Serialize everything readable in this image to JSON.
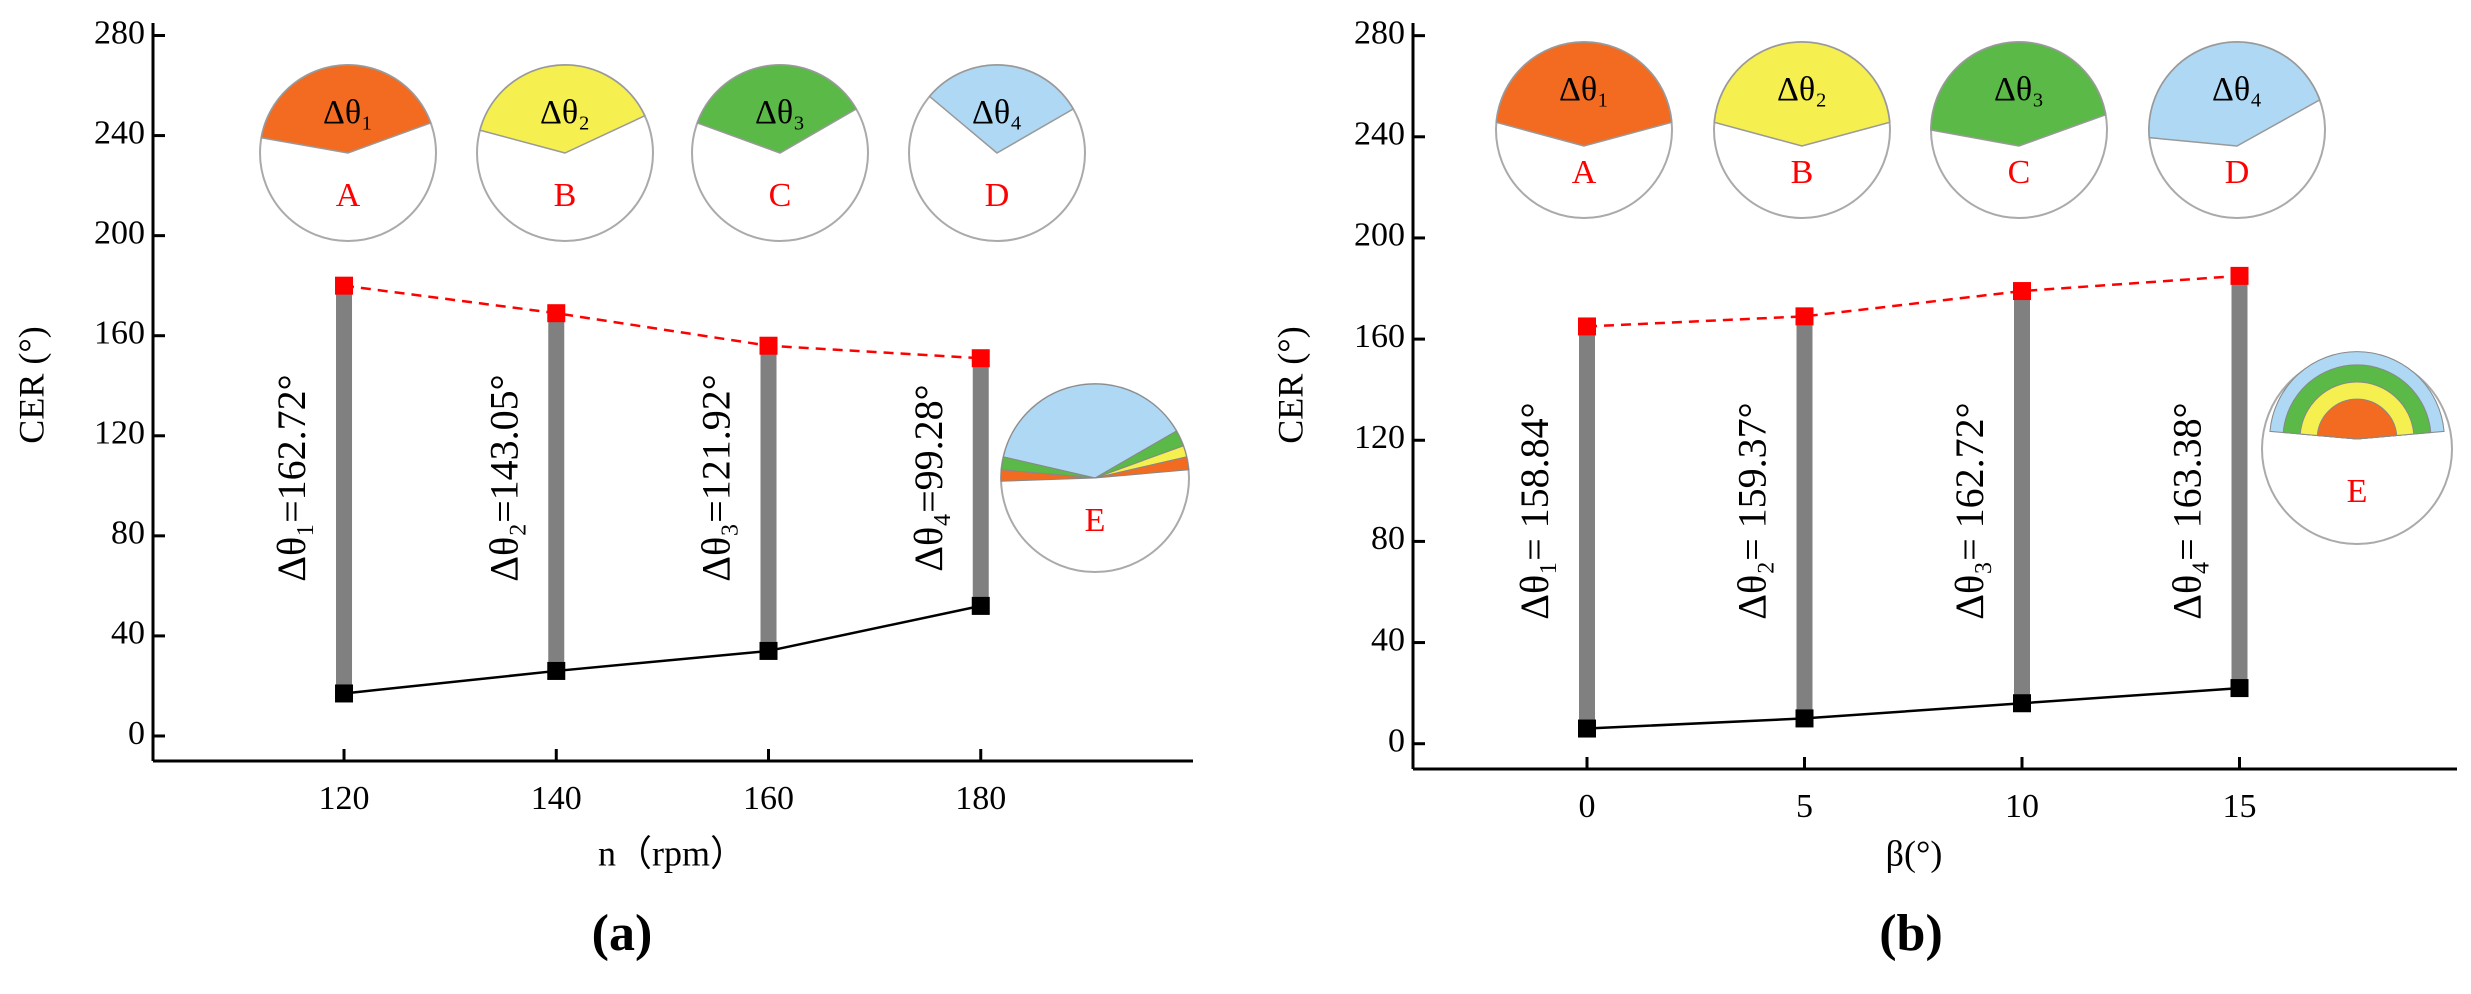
{
  "chart_data": [
    {
      "type": "range",
      "panel_label": "(a)",
      "x_label": "n（rpm）",
      "y_label": "CER (°)",
      "x": [
        120,
        140,
        160,
        180
      ],
      "xlim": [
        102,
        200
      ],
      "xticks": [
        120,
        140,
        160,
        180
      ],
      "ylim": [
        -10,
        285
      ],
      "yticks": [
        0,
        40,
        80,
        120,
        160,
        200,
        240,
        280
      ],
      "bar_color": "#808080",
      "series": [
        {
          "color": "#000000",
          "values": [
            17,
            26,
            34,
            52
          ]
        },
        {
          "color": "#ff0000",
          "values": [
            180,
            169,
            156,
            151
          ],
          "dashed": true
        }
      ],
      "range_labels": [
        "Δθ₁=162.72°",
        "Δθ₂=143.05°",
        "Δθ₃=121.92°",
        "Δθ₄=99.28°"
      ],
      "insets": [
        {
          "label": "Δθ₁",
          "letter": "A",
          "color": "#f26b21"
        },
        {
          "label": "Δθ₂",
          "letter": "B",
          "color": "#f5ef4f"
        },
        {
          "label": "Δθ₃",
          "letter": "C",
          "color": "#5ab947"
        },
        {
          "label": "Δθ₄",
          "letter": "D",
          "color": "#aed8f3"
        }
      ],
      "summary_inset": "E"
    },
    {
      "type": "range",
      "panel_label": "(b)",
      "x_label": "β(°)",
      "y_label": "CER (°)",
      "x": [
        0,
        5,
        10,
        15
      ],
      "xlim": [
        -4,
        20
      ],
      "xticks": [
        0,
        5,
        10,
        15
      ],
      "ylim": [
        -10,
        285
      ],
      "yticks": [
        0,
        40,
        80,
        120,
        160,
        200,
        240,
        280
      ],
      "bar_color": "#808080",
      "series": [
        {
          "color": "#000000",
          "values": [
            6,
            10,
            16,
            22
          ]
        },
        {
          "color": "#ff0000",
          "values": [
            165,
            169,
            179,
            185
          ],
          "dashed": true
        }
      ],
      "range_labels": [
        "Δθ₁= 158.84°",
        "Δθ₂= 159.37°",
        "Δθ₃= 162.72°",
        "Δθ₄= 163.38°"
      ],
      "insets": [
        {
          "label": "Δθ₁",
          "letter": "A",
          "color": "#f26b21"
        },
        {
          "label": "Δθ₂",
          "letter": "B",
          "color": "#f5ef4f"
        },
        {
          "label": "Δθ₃",
          "letter": "C",
          "color": "#5ab947"
        },
        {
          "label": "Δθ₄",
          "letter": "D",
          "color": "#aed8f3"
        }
      ],
      "summary_inset": "E"
    }
  ]
}
